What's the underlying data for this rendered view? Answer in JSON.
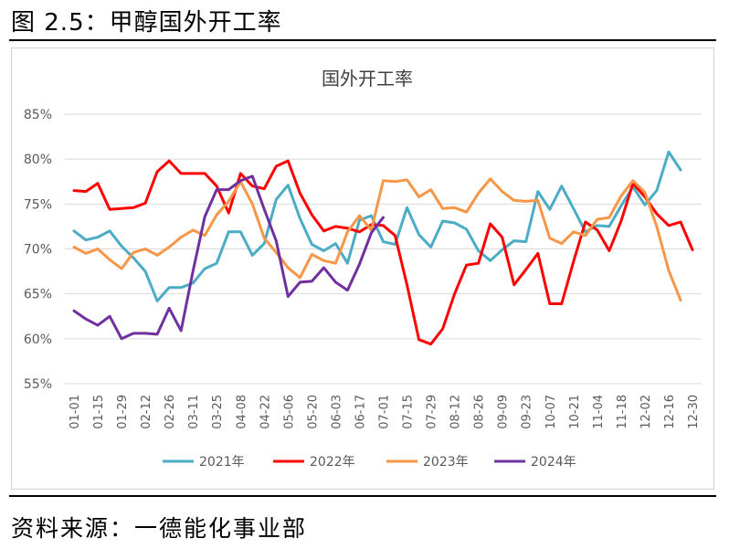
{
  "figure_title": "图 2.5：甲醇国外开工率",
  "source": "资料来源：一德能化事业部",
  "chart_data": {
    "type": "line",
    "title": "国外开工率",
    "xlabel": "",
    "ylabel": "",
    "ylim": [
      55,
      85
    ],
    "yticks": [
      55,
      60,
      65,
      70,
      75,
      80,
      85
    ],
    "ytick_labels": [
      "55%",
      "60%",
      "65%",
      "70%",
      "75%",
      "80%",
      "85%"
    ],
    "grid": true,
    "legend_position": "bottom",
    "x_tick_labels": [
      "01-01",
      "01-15",
      "01-29",
      "02-12",
      "02-26",
      "03-11",
      "03-25",
      "04-08",
      "04-22",
      "05-06",
      "05-20",
      "06-03",
      "06-17",
      "07-01",
      "07-15",
      "07-29",
      "08-12",
      "08-26",
      "09-09",
      "09-23",
      "10-07",
      "10-21",
      "11-04",
      "11-18",
      "12-02",
      "12-16",
      "12-30"
    ],
    "points_count": 53,
    "series": [
      {
        "name": "2021年",
        "color": "#4bacc6",
        "values": [
          72.0,
          71.0,
          71.3,
          72.0,
          70.3,
          69.0,
          67.5,
          64.2,
          65.7,
          65.7,
          66.2,
          67.8,
          68.4,
          71.9,
          71.9,
          69.3,
          70.6,
          75.5,
          77.1,
          73.4,
          70.5,
          69.8,
          70.6,
          68.4,
          73.2,
          73.7,
          70.8,
          70.5,
          74.6,
          71.6,
          70.2,
          73.1,
          72.9,
          72.2,
          69.8,
          68.7,
          69.9,
          70.9,
          70.8,
          76.4,
          74.4,
          77.0,
          74.5,
          71.9,
          72.6,
          72.5,
          74.8,
          76.9,
          74.9,
          76.5,
          80.8,
          78.8,
          null
        ]
      },
      {
        "name": "2022年",
        "color": "#ff0000",
        "values": [
          76.5,
          76.4,
          77.3,
          74.4,
          74.5,
          74.6,
          75.1,
          78.6,
          79.8,
          78.4,
          78.4,
          78.4,
          77.0,
          74.0,
          78.4,
          77.0,
          76.7,
          79.2,
          79.8,
          76.2,
          73.8,
          72.0,
          72.5,
          72.3,
          71.9,
          72.7,
          72.6,
          71.5,
          66.0,
          59.9,
          59.4,
          61.1,
          65.0,
          68.2,
          68.4,
          72.8,
          71.3,
          66.0,
          67.7,
          69.5,
          63.9,
          63.9,
          68.6,
          73.0,
          72.1,
          69.8,
          73.1,
          77.3,
          75.8,
          73.9,
          72.6,
          73.0,
          69.9
        ]
      },
      {
        "name": "2023年",
        "color": "#f79646",
        "values": [
          70.2,
          69.5,
          70.0,
          68.8,
          67.8,
          69.6,
          70.0,
          69.3,
          70.2,
          71.3,
          72.1,
          71.5,
          73.8,
          75.3,
          77.5,
          75.0,
          71.2,
          69.6,
          67.9,
          66.8,
          69.4,
          68.7,
          68.4,
          71.9,
          73.7,
          72.1,
          77.6,
          77.5,
          77.7,
          75.8,
          76.6,
          74.5,
          74.6,
          74.1,
          76.2,
          77.8,
          76.4,
          75.4,
          75.3,
          75.4,
          71.2,
          70.6,
          71.9,
          71.5,
          73.3,
          73.5,
          75.9,
          77.6,
          76.3,
          72.5,
          67.6,
          64.3,
          null
        ]
      },
      {
        "name": "2024年",
        "color": "#7030a0",
        "values": [
          63.1,
          62.2,
          61.5,
          62.5,
          60.0,
          60.6,
          60.6,
          60.5,
          63.4,
          60.9,
          67.5,
          73.6,
          76.6,
          76.6,
          77.6,
          78.1,
          74.4,
          70.9,
          64.7,
          66.3,
          66.4,
          67.9,
          66.3,
          65.4,
          68.3,
          71.8,
          73.5,
          null,
          null,
          null,
          null,
          null,
          null,
          null,
          null,
          null,
          null,
          null,
          null,
          null,
          null,
          null,
          null,
          null,
          null,
          null,
          null,
          null,
          null,
          null,
          null,
          null,
          null
        ]
      }
    ]
  }
}
